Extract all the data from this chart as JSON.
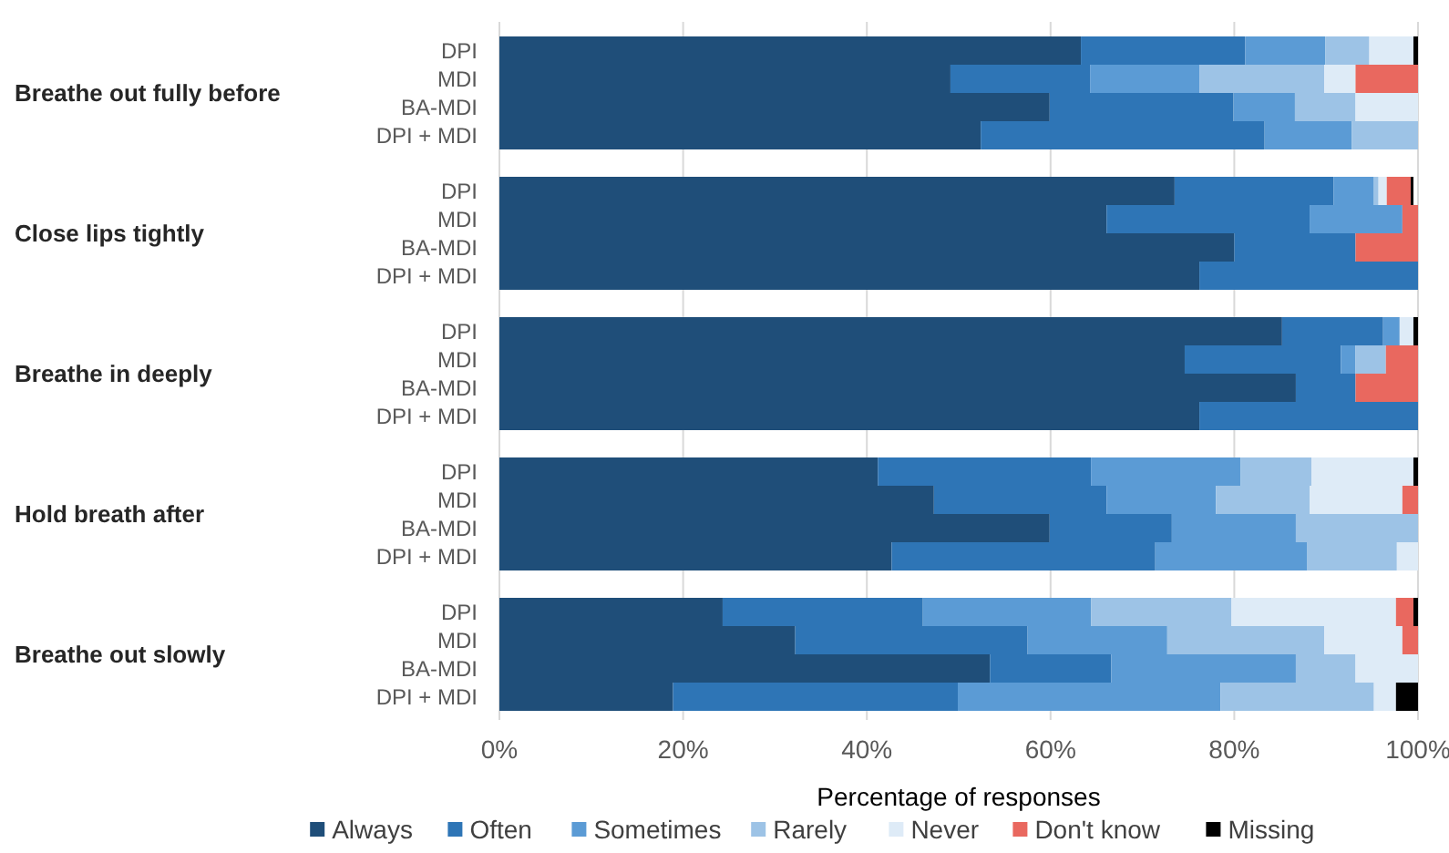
{
  "chart_data": {
    "type": "bar",
    "orientation": "horizontal",
    "stacked": true,
    "categories": [
      "DPI",
      "MDI",
      "BA-MDI",
      "DPI + MDI",
      "DPI",
      "MDI",
      "BA-MDI",
      "DPI + MDI",
      "DPI",
      "MDI",
      "BA-MDI",
      "DPI + MDI",
      "DPI",
      "MDI",
      "BA-MDI",
      "DPI + MDI",
      "DPI",
      "MDI",
      "BA-MDI",
      "DPI + MDI"
    ],
    "annotations": [
      "Breathe out fully before",
      "Close lips tightly",
      "Breathe in deeply",
      "Hold breath after",
      "Breathe out slowly"
    ],
    "xlabel": "Percentage of responses",
    "xlim": [
      0,
      100
    ],
    "xticks": [
      {
        "value": 0,
        "label": "0%"
      },
      {
        "value": 20,
        "label": "20%"
      },
      {
        "value": 40,
        "label": "40%"
      },
      {
        "value": 60,
        "label": "60%"
      },
      {
        "value": 80,
        "label": "80%"
      },
      {
        "value": 100,
        "label": "100%"
      }
    ],
    "grid": "x",
    "legend": "bottom",
    "series": [
      {
        "name": "Always",
        "color": "#1f4e79",
        "values": [
          63.3,
          49.1,
          59.9,
          52.4,
          73.5,
          66.1,
          80.0,
          76.2,
          85.2,
          74.6,
          86.7,
          76.2,
          41.2,
          47.3,
          59.9,
          42.7,
          24.3,
          32.2,
          53.4,
          18.9
        ]
      },
      {
        "name": "Often",
        "color": "#2e75b6",
        "values": [
          17.9,
          15.2,
          20.0,
          30.9,
          17.3,
          22.1,
          13.2,
          23.8,
          11.0,
          17.0,
          6.5,
          23.8,
          23.2,
          18.8,
          13.3,
          28.7,
          21.8,
          25.3,
          13.2,
          31.0
        ]
      },
      {
        "name": "Sometimes",
        "color": "#5b9bd5",
        "values": [
          8.7,
          11.9,
          6.7,
          9.5,
          4.4,
          10.1,
          0,
          0,
          1.8,
          1.6,
          0,
          0,
          16.3,
          11.9,
          13.5,
          16.5,
          18.3,
          15.2,
          20.1,
          28.6
        ]
      },
      {
        "name": "Rarely",
        "color": "#9dc3e6",
        "values": [
          4.8,
          13.6,
          6.6,
          7.2,
          0.5,
          0,
          0,
          0,
          0,
          3.3,
          0,
          0,
          7.7,
          10.2,
          13.3,
          9.8,
          15.3,
          17.1,
          6.5,
          16.7
        ]
      },
      {
        "name": "Never",
        "color": "#deebf7",
        "values": [
          4.8,
          3.4,
          6.8,
          0,
          0.9,
          0,
          0,
          0,
          1.5,
          0,
          0,
          0,
          11.1,
          10.1,
          0,
          2.3,
          17.9,
          8.5,
          6.8,
          2.4
        ]
      },
      {
        "name": "Don't know",
        "color": "#e9685f",
        "values": [
          0,
          6.8,
          0,
          0,
          2.6,
          1.7,
          6.8,
          0,
          0,
          3.5,
          6.8,
          0,
          0,
          1.7,
          0,
          0,
          1.9,
          1.7,
          0,
          0
        ]
      },
      {
        "name": "Missing",
        "color": "#000000",
        "values": [
          0.5,
          0,
          0,
          0,
          0.3,
          0,
          0,
          0,
          0.5,
          0,
          0,
          0,
          0.5,
          0,
          0,
          0,
          0.5,
          0,
          0,
          2.4
        ]
      }
    ]
  }
}
